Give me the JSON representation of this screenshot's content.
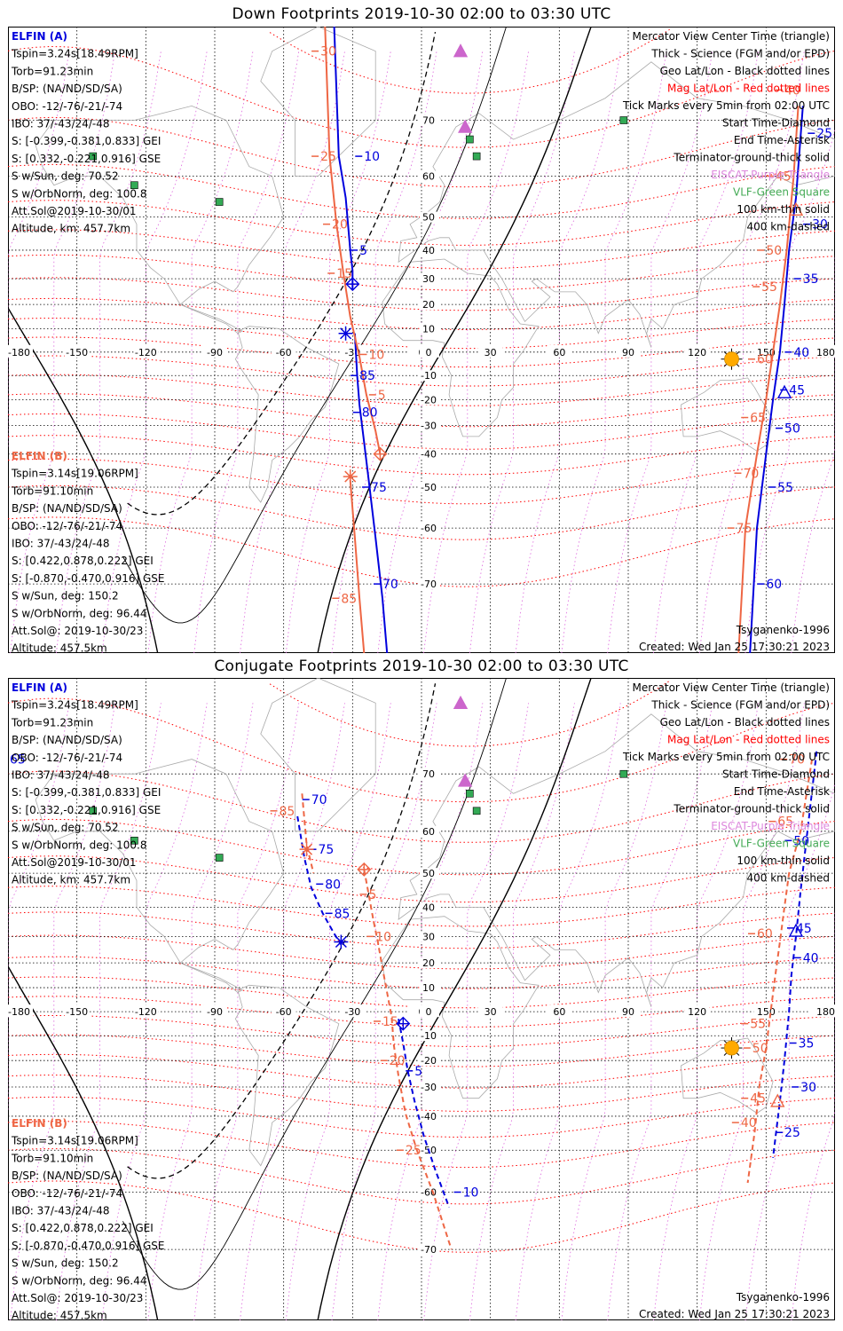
{
  "panels": [
    {
      "id": "down",
      "title": "Down Footprints 2019-10-30 02:00 to 03:30 UTC",
      "sat_a_lines": [
        "Tspin=3.24s[18.49RPM]",
        "Torb=91.23min",
        "B/SP: (NA/ND/SD/SA)",
        "OBO: -12/-76/-21/-74",
        "IBO: 37/-43/24/-48",
        "S: [-0.399,-0.381,0.833] GEI",
        "S: [0.332,-0.221,0.916] GSE",
        "S w/Sun, deg: 70.52",
        "S w/OrbNorm, deg: 100.8",
        "Att.Sol@2019-10-30/01",
        "Altitude, km: 457.7km"
      ],
      "sat_b_lines": [
        "Tspin=3.14s[19.06RPM]",
        "Torb=91.10min",
        "B/SP: (NA/ND/SD/SA)",
        "OBO: -12/-76/-21/-74",
        "IBO: 37/-43/24/-48",
        "S: [0.422,0.878,0.222] GEI",
        "S: [-0.870,-0.470,0.916] GSE",
        "S w/Sun, deg: 150.2",
        "S w/OrbNorm, deg: 96.44",
        "Att.Sol@: 2019-10-30/23",
        "Altitude: 457.5km"
      ]
    },
    {
      "id": "conjugate",
      "title": "Conjugate Footprints 2019-10-30 02:00 to 03:30 UTC",
      "sat_a_lines": [
        "Tspin=3.24s[18.49RPM]",
        "Torb=91.23min",
        "B/SP: (NA/ND/SD/SA)",
        "OBO: -12/-76/-21/-74",
        "IBO: 37/-43/24/-48",
        "S: [-0.399,-0.381,0.833] GEI",
        "S: [0.332,-0.221,0.916] GSE",
        "S w/Sun, deg: 70.52",
        "S w/OrbNorm, deg: 100.8",
        "Att.Sol@2019-10-30/01",
        "Altitude, km: 457.7km"
      ],
      "sat_b_lines": [
        "Tspin=3.14s[19.06RPM]",
        "Torb=91.10min",
        "B/SP: (NA/ND/SD/SA)",
        "OBO: -12/-76/-21/-74",
        "IBO: 37/-43/24/-48",
        "S: [0.422,0.878,0.222] GEI",
        "S: [-0.870,-0.470,0.916] GSE",
        "S w/Sun, deg: 150.2",
        "S w/OrbNorm, deg: 96.44",
        "Att.Sol@: 2019-10-30/23",
        "Altitude: 457.5km"
      ]
    }
  ],
  "sat_a_name": "ELFIN (A)",
  "sat_b_name": "ELFIN (B)",
  "legend_lines": [
    {
      "text": "Mercator View Center Time (triangle)",
      "color": "#000000"
    },
    {
      "text": "Thick - Science (FGM and/or EPD)",
      "color": "#000000"
    },
    {
      "text": "Geo Lat/Lon - Black dotted lines",
      "color": "#000000"
    },
    {
      "text": "Mag Lat/Lon - Red dotted lines",
      "color": "#ff0000"
    },
    {
      "text": "Tick Marks every 5min from 02:00 UTC",
      "color": "#000000"
    },
    {
      "text": "Start Time-Diamond",
      "color": "#000000"
    },
    {
      "text": "End Time-Asterisk",
      "color": "#000000"
    },
    {
      "text": "Terminator-ground-thick solid",
      "color": "#000000"
    },
    {
      "text": "EISCAT-Purple Triangle",
      "color": "#dd88dd"
    },
    {
      "text": "VLF-Green Square",
      "color": "#44aa55"
    },
    {
      "text": "100 km-thin solid",
      "color": "#000000"
    },
    {
      "text": "400 km-dashed",
      "color": "#000000"
    }
  ],
  "model_label": "Tsyganenko-1996",
  "created_label": "Created: Wed Jan 25 17:30:21 2023",
  "colors": {
    "sat_a": "#0000dd",
    "sat_b": "#ee6644",
    "mag_grid": "#ff0000",
    "geo_grid": "#000000",
    "eiscat": "#cc66cc",
    "vlf": "#33aa55",
    "sun": "#ffaa00"
  },
  "chart_data": [
    {
      "type": "scatter",
      "subtype": "mercator-map",
      "title": "Down Footprints 2019-10-30 02:00 to 03:30 UTC",
      "x_ticks": [
        "-180",
        "-150",
        "-120",
        "-90",
        "-60",
        "-30",
        "0",
        "30",
        "60",
        "90",
        "120",
        "150",
        "180"
      ],
      "y_ticks": [
        "70",
        "60",
        "50",
        "40",
        "30",
        "20",
        "10",
        "0",
        "-10",
        "-20",
        "-30",
        "-40",
        "-50",
        "-60",
        "-70"
      ],
      "xlim": [
        -180,
        180
      ],
      "ylim": [
        -78,
        80
      ],
      "sat_a_track": {
        "west": [
          [
            -38,
            80
          ],
          [
            -36,
            64
          ],
          [
            -33,
            55
          ],
          [
            -31,
            40
          ],
          [
            -30,
            33
          ],
          [
            -30,
            26
          ]
        ],
        "east": [
          [
            -29,
            8
          ],
          [
            -28,
            -10
          ],
          [
            -27,
            -22
          ],
          [
            -25,
            -36
          ],
          [
            -23,
            -48
          ],
          [
            -20,
            -62
          ],
          [
            -17,
            -72
          ],
          [
            -15,
            -78
          ]
        ],
        "east2": [
          [
            166,
            72
          ],
          [
            163,
            55
          ],
          [
            160,
            40
          ],
          [
            158,
            20
          ],
          [
            156,
            0
          ],
          [
            153,
            -20
          ],
          [
            150,
            -40
          ],
          [
            146,
            -60
          ],
          [
            143,
            -78
          ]
        ],
        "tick_labels_west": [
          {
            "t": "10",
            "lon": -25,
            "lat": 64
          },
          {
            "t": "5",
            "lon": -27,
            "lat": 40
          }
        ],
        "tick_labels_east": [
          {
            "t": "85",
            "lon": -27,
            "lat": -10
          },
          {
            "t": "80",
            "lon": -26,
            "lat": -25
          },
          {
            "t": "75",
            "lon": -22,
            "lat": -50
          },
          {
            "t": "70",
            "lon": -17,
            "lat": -70
          }
        ],
        "tick_labels_pac": [
          {
            "t": "25",
            "lon": 172,
            "lat": 68
          },
          {
            "t": "30",
            "lon": 170,
            "lat": 48
          },
          {
            "t": "35",
            "lon": 166,
            "lat": 30
          },
          {
            "t": "40",
            "lon": 162,
            "lat": 0
          },
          {
            "t": "45",
            "lon": 160,
            "lat": -16
          },
          {
            "t": "50",
            "lon": 158,
            "lat": -31
          },
          {
            "t": "55",
            "lon": 155,
            "lat": -50
          },
          {
            "t": "60",
            "lon": 150,
            "lat": -70
          }
        ],
        "start": [
          -30,
          28
        ],
        "end": [
          -33,
          8
        ],
        "center": [
          158,
          -17
        ]
      },
      "sat_b_track": {
        "west": [
          [
            -42,
            80
          ],
          [
            -40,
            64
          ],
          [
            -37,
            48
          ],
          [
            -34,
            32
          ],
          [
            -31,
            15
          ],
          [
            -27,
            -2
          ],
          [
            -24,
            -18
          ],
          [
            -20,
            -32
          ],
          [
            -18,
            -40
          ]
        ],
        "east": [
          [
            -31,
            -48
          ],
          [
            -29,
            -62
          ],
          [
            -27,
            -72
          ],
          [
            -25,
            -78
          ]
        ],
        "east2": [
          [
            164,
            72
          ],
          [
            162,
            60
          ],
          [
            159,
            40
          ],
          [
            156,
            20
          ],
          [
            153,
            0
          ],
          [
            150,
            -20
          ],
          [
            146,
            -40
          ],
          [
            141,
            -60
          ],
          [
            138,
            -78
          ]
        ],
        "tick_labels_west": [
          {
            "t": "30",
            "lon": -44,
            "lat": 78
          },
          {
            "t": "25",
            "lon": -44,
            "lat": 64
          },
          {
            "t": "20",
            "lon": -39,
            "lat": 48
          },
          {
            "t": "15",
            "lon": -37,
            "lat": 32
          },
          {
            "t": "10",
            "lon": -23,
            "lat": -1
          },
          {
            "t": "5",
            "lon": -19,
            "lat": -18
          }
        ],
        "tick_labels_east": [
          {
            "t": "85",
            "lon": -35,
            "lat": -72
          }
        ],
        "tick_labels_pac": [
          {
            "t": "40",
            "lon": 158,
            "lat": 74
          },
          {
            "t": "45",
            "lon": 154,
            "lat": 60
          },
          {
            "t": "50",
            "lon": 150,
            "lat": 40
          },
          {
            "t": "55",
            "lon": 148,
            "lat": 27
          },
          {
            "t": "60",
            "lon": 146,
            "lat": -3
          },
          {
            "t": "65",
            "lon": 143,
            "lat": -27
          },
          {
            "t": "70",
            "lon": 140,
            "lat": -46
          },
          {
            "t": "75",
            "lon": 137,
            "lat": -60
          }
        ],
        "start": [
          -18,
          -40
        ],
        "end": [
          -31,
          -47
        ],
        "center": [
          163,
          52
        ]
      },
      "sun": [
        135,
        -3
      ],
      "eiscat_sites": [
        [
          17,
          78
        ],
        [
          19,
          69
        ]
      ],
      "vlf_sites": [
        [
          -143,
          64
        ],
        [
          -125,
          58
        ],
        [
          -88,
          54
        ],
        [
          21,
          67
        ],
        [
          24,
          64
        ],
        [
          88,
          70
        ]
      ]
    },
    {
      "type": "scatter",
      "subtype": "mercator-map",
      "title": "Conjugate Footprints 2019-10-30 02:00 to 03:30 UTC",
      "x_ticks": [
        "-180",
        "-150",
        "-120",
        "-90",
        "-60",
        "-30",
        "0",
        "30",
        "60",
        "90",
        "120",
        "150",
        "180"
      ],
      "y_ticks": [
        "70",
        "60",
        "50",
        "40",
        "30",
        "20",
        "10",
        "0",
        "-10",
        "-20",
        "-30",
        "-40",
        "-50",
        "-60",
        "-70"
      ],
      "xlim": [
        -180,
        180
      ],
      "ylim": [
        -78,
        80
      ],
      "sat_a_track": {
        "west": [
          [
            -54,
            63
          ],
          [
            -51,
            54
          ],
          [
            -48,
            46
          ],
          [
            -43,
            38
          ],
          [
            -38,
            31
          ],
          [
            -35,
            27
          ]
        ],
        "east": [
          [
            -10,
            -3
          ],
          [
            -8,
            -13
          ],
          [
            -6,
            -24
          ],
          [
            -3,
            -35
          ],
          [
            1,
            -46
          ],
          [
            6,
            -55
          ],
          [
            12,
            -63
          ]
        ],
        "east2": [
          [
            172,
            73
          ],
          [
            168,
            60
          ],
          [
            165,
            45
          ],
          [
            163,
            30
          ],
          [
            161,
            15
          ],
          [
            160,
            0
          ],
          [
            158,
            -20
          ],
          [
            156,
            -35
          ],
          [
            153,
            -52
          ]
        ],
        "tick_labels_west": [
          {
            "t": "70",
            "lon": -48,
            "lat": 66
          },
          {
            "t": "75",
            "lon": -45,
            "lat": 56
          },
          {
            "t": "80",
            "lon": -42,
            "lat": 47
          },
          {
            "t": "85",
            "lon": -38,
            "lat": 38
          }
        ],
        "tick_labels_east": [
          {
            "t": "5",
            "lon": -3,
            "lat": -24
          },
          {
            "t": "10",
            "lon": 18,
            "lat": -60
          }
        ],
        "tick_labels_pac": [
          {
            "t": "50",
            "lon": 162,
            "lat": 58
          },
          {
            "t": "45",
            "lon": 163,
            "lat": 33
          },
          {
            "t": "40",
            "lon": 166,
            "lat": 22
          },
          {
            "t": "35",
            "lon": 164,
            "lat": -13
          },
          {
            "t": "30",
            "lon": 165,
            "lat": -30
          },
          {
            "t": "25",
            "lon": 158,
            "lat": -45
          }
        ],
        "start": [
          -8,
          -5
        ],
        "end": [
          -35,
          28
        ],
        "center": [
          163,
          32
        ],
        "edge_label": {
          "t": "65",
          "lon": -180,
          "lat": 72
        }
      },
      "sat_b_track": {
        "west": [
          [
            -52,
            67
          ],
          [
            -50,
            57
          ],
          [
            -47,
            50
          ]
        ],
        "west_mid": [
          [
            -25,
            51
          ],
          [
            -23,
            44
          ],
          [
            -21,
            36
          ],
          [
            -19,
            28
          ],
          [
            -17,
            18
          ],
          [
            -15,
            8
          ],
          [
            -13,
            -2
          ],
          [
            -12,
            -14
          ],
          [
            -10,
            -26
          ],
          [
            -7,
            -39
          ],
          [
            -2,
            -50
          ],
          [
            5,
            -60
          ],
          [
            13,
            -70
          ]
        ],
        "east2": [
          [
            170,
            72
          ],
          [
            165,
            60
          ],
          [
            160,
            50
          ],
          [
            158,
            40
          ],
          [
            156,
            28
          ],
          [
            154,
            15
          ],
          [
            152,
            0
          ],
          [
            150,
            -15
          ],
          [
            147,
            -30
          ],
          [
            145,
            -45
          ],
          [
            142,
            -58
          ]
        ],
        "tick_labels_west": [
          {
            "t": "85",
            "lon": -62,
            "lat": 64
          },
          {
            "t": "5",
            "lon": -23,
            "lat": 44
          },
          {
            "t": "10",
            "lon": -20,
            "lat": 30
          },
          {
            "t": "15",
            "lon": -17,
            "lat": -4
          },
          {
            "t": "20",
            "lon": -14,
            "lat": -20
          },
          {
            "t": "25",
            "lon": -7,
            "lat": -50
          }
        ],
        "tick_labels_pac": [
          {
            "t": "70",
            "lon": 160,
            "lat": 72
          },
          {
            "t": "65",
            "lon": 155,
            "lat": 62
          },
          {
            "t": "60",
            "lon": 146,
            "lat": 31
          },
          {
            "t": "55",
            "lon": 143,
            "lat": -5
          },
          {
            "t": "50",
            "lon": 144,
            "lat": -15
          },
          {
            "t": "45",
            "lon": 143,
            "lat": -34
          },
          {
            "t": "40",
            "lon": 139,
            "lat": -42
          }
        ],
        "start": [
          -25,
          51
        ],
        "end": [
          -50,
          56
        ],
        "center": [
          155,
          -35
        ]
      },
      "sun": [
        135,
        -15
      ],
      "eiscat_sites": [
        [
          17,
          78
        ],
        [
          19,
          69
        ]
      ],
      "vlf_sites": [
        [
          -143,
          64
        ],
        [
          -125,
          58
        ],
        [
          -88,
          54
        ],
        [
          21,
          67
        ],
        [
          24,
          64
        ],
        [
          88,
          70
        ]
      ]
    }
  ]
}
